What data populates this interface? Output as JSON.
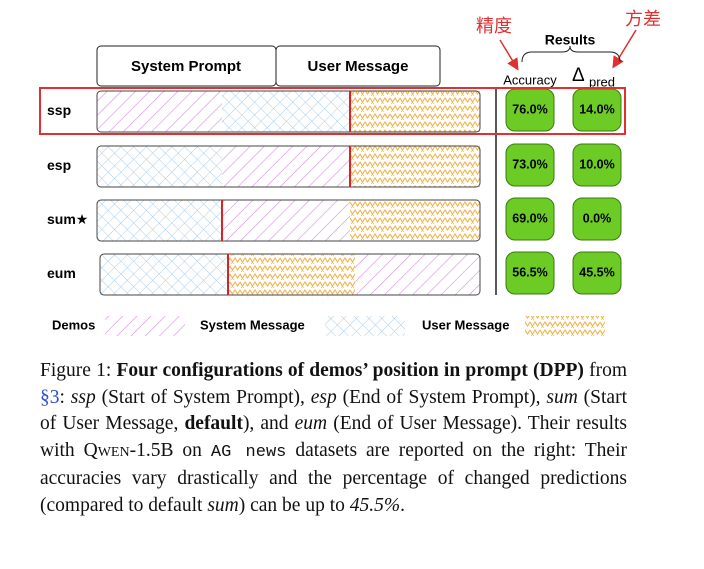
{
  "annotations": {
    "accuracy_note": "精度",
    "delta_note": "方差"
  },
  "header": {
    "system_prompt": "System Prompt",
    "user_message": "User Message",
    "results": "Results",
    "accuracy": "Accuracy",
    "delta": "Δ",
    "delta_sub": "pred"
  },
  "rows": [
    {
      "label": "ssp",
      "accuracy": "76.0%",
      "delta": "14.0%"
    },
    {
      "label": "esp",
      "accuracy": "73.0%",
      "delta": "10.0%"
    },
    {
      "label": "sum★",
      "accuracy": "69.0%",
      "delta": "0.0%"
    },
    {
      "label": "eum",
      "accuracy": "56.5%",
      "delta": "45.5%"
    }
  ],
  "legend": [
    "Demos",
    "System Message",
    "User Message"
  ],
  "caption": [
    {
      "text": "Figure 1: ",
      "style": "normal"
    },
    {
      "text": "Four configurations of demos’ position in prompt (DPP)",
      "style": "bold"
    },
    {
      "text": " from ",
      "style": "normal"
    },
    {
      "text": "§3",
      "style": "link"
    },
    {
      "text": ": ",
      "style": "normal"
    },
    {
      "text": "ssp",
      "style": "italic"
    },
    {
      "text": " (Start of System Prompt), ",
      "style": "normal"
    },
    {
      "text": "esp",
      "style": "italic"
    },
    {
      "text": " (End of System Prompt), ",
      "style": "normal"
    },
    {
      "text": "sum",
      "style": "italic"
    },
    {
      "text": " (Start of User Message, ",
      "style": "normal"
    },
    {
      "text": "default",
      "style": "bold"
    },
    {
      "text": "), and ",
      "style": "normal"
    },
    {
      "text": "eum",
      "style": "italic"
    },
    {
      "text": " (End of User Message). Their results with ",
      "style": "normal"
    },
    {
      "text": "Qwen-1.5B",
      "style": "smallcaps"
    },
    {
      "text": " on ",
      "style": "normal"
    },
    {
      "text": "AG news",
      "style": "mono"
    },
    {
      "text": " datasets are reported on the right: Their accuracies vary drastically and the percentage of changed predictions (compared to default ",
      "style": "normal"
    },
    {
      "text": "sum",
      "style": "italic"
    },
    {
      "text": ") can be up to ",
      "style": "normal"
    },
    {
      "text": "45.5%",
      "style": "italic"
    },
    {
      "text": ".",
      "style": "normal"
    }
  ]
}
